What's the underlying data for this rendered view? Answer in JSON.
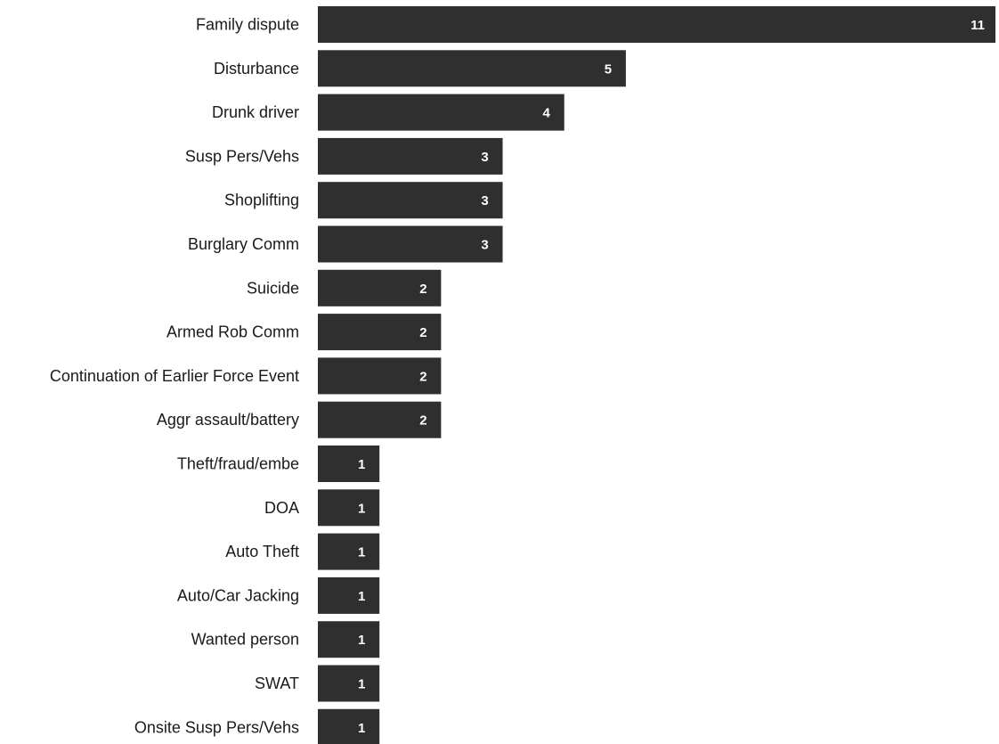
{
  "colors": {
    "bar": "#2f2f2f",
    "value_text": "#ffffff",
    "category_text": "#1a1a1a"
  },
  "chart_data": {
    "type": "bar",
    "orientation": "horizontal",
    "title": "",
    "xlabel": "",
    "ylabel": "",
    "grid": false,
    "xlim": [
      0,
      11
    ],
    "categories": [
      "Family dispute",
      "Disturbance",
      "Drunk driver",
      "Susp Pers/Vehs",
      "Shoplifting",
      "Burglary Comm",
      "Suicide",
      "Armed Rob Comm",
      "Continuation of Earlier Force Event",
      "Aggr assault/battery",
      "Theft/fraud/embe",
      "DOA",
      "Auto Theft",
      "Auto/Car Jacking",
      "Wanted person",
      "SWAT",
      "Onsite Susp Pers/Vehs"
    ],
    "values": [
      11,
      5,
      4,
      3,
      3,
      3,
      2,
      2,
      2,
      2,
      1,
      1,
      1,
      1,
      1,
      1,
      1
    ],
    "data_labels": [
      "11",
      "5",
      "4",
      "3",
      "3",
      "3",
      "2",
      "2",
      "2",
      "2",
      "1",
      "1",
      "1",
      "1",
      "1",
      "1",
      "1"
    ]
  }
}
